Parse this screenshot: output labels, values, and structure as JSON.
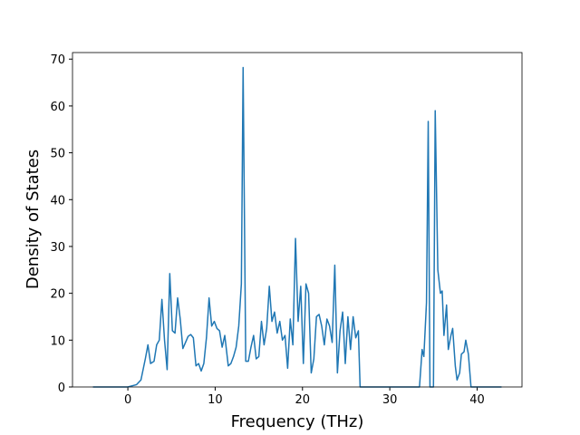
{
  "chart_data": {
    "type": "line",
    "xlabel": "Frequency (THz)",
    "ylabel": "Density of States",
    "x": [
      -4,
      0,
      1,
      1.5,
      2,
      2.3,
      2.6,
      3,
      3.3,
      3.6,
      3.9,
      4.2,
      4.5,
      4.8,
      5.1,
      5.4,
      5.7,
      6.0,
      6.3,
      6.6,
      6.9,
      7.2,
      7.5,
      7.8,
      8.1,
      8.4,
      8.7,
      9.0,
      9.3,
      9.6,
      9.9,
      10.2,
      10.5,
      10.8,
      11.1,
      11.5,
      11.8,
      12.1,
      12.4,
      12.7,
      13.0,
      13.2,
      13.5,
      13.8,
      14.1,
      14.4,
      14.7,
      15.0,
      15.3,
      15.6,
      15.9,
      16.2,
      16.5,
      16.8,
      17.1,
      17.4,
      17.7,
      18.0,
      18.3,
      18.6,
      18.9,
      19.2,
      19.5,
      19.8,
      20.1,
      20.4,
      20.7,
      21.0,
      21.3,
      21.6,
      21.9,
      22.2,
      22.5,
      22.8,
      23.1,
      23.4,
      23.7,
      24.0,
      24.3,
      24.6,
      24.9,
      25.2,
      25.5,
      25.8,
      26.1,
      26.4,
      26.6,
      33.4,
      33.7,
      33.9,
      34.2,
      34.4,
      34.6,
      35.0,
      35.2,
      35.5,
      35.8,
      36.0,
      36.2,
      36.5,
      36.7,
      37.0,
      37.2,
      37.5,
      37.7,
      38.0,
      38.2,
      38.5,
      38.7,
      39.0,
      39.3,
      42.8
    ],
    "series": [
      {
        "color": "#1f77b4",
        "values": [
          0,
          0,
          0.5,
          1.5,
          6,
          9,
          5,
          5.5,
          9,
          10,
          18.7,
          10,
          3.7,
          24.2,
          12,
          11.5,
          19,
          14.5,
          8.2,
          9.5,
          10.8,
          11.2,
          10.5,
          4.5,
          5,
          3.4,
          5,
          10.5,
          19,
          13,
          14,
          12.5,
          12,
          8.5,
          11,
          4.5,
          5,
          6.5,
          8.5,
          13,
          22,
          68.2,
          5.5,
          5.5,
          8.5,
          11,
          6,
          6.5,
          14,
          9,
          12.5,
          21.5,
          14,
          16,
          11.5,
          14,
          10,
          11,
          4,
          14.5,
          9,
          31.7,
          14,
          21.5,
          5,
          22,
          20,
          3,
          6,
          15,
          15.5,
          13,
          9,
          14.5,
          13,
          9.5,
          26,
          3,
          12,
          16,
          5,
          15,
          8,
          15,
          10.5,
          12,
          0,
          0,
          8,
          6.5,
          18,
          56.7,
          0,
          0,
          59,
          25,
          20,
          20.5,
          11,
          17.5,
          8,
          11,
          12.5,
          4.5,
          1.5,
          3,
          7,
          7.5,
          10,
          7,
          0,
          0
        ]
      }
    ],
    "xlim": [
      -6.34,
      45.14
    ],
    "ylim": [
      0,
      71.4
    ],
    "xticks": [
      0,
      10,
      20,
      30,
      40
    ],
    "yticks": [
      0,
      10,
      20,
      30,
      40,
      50,
      60,
      70
    ]
  }
}
